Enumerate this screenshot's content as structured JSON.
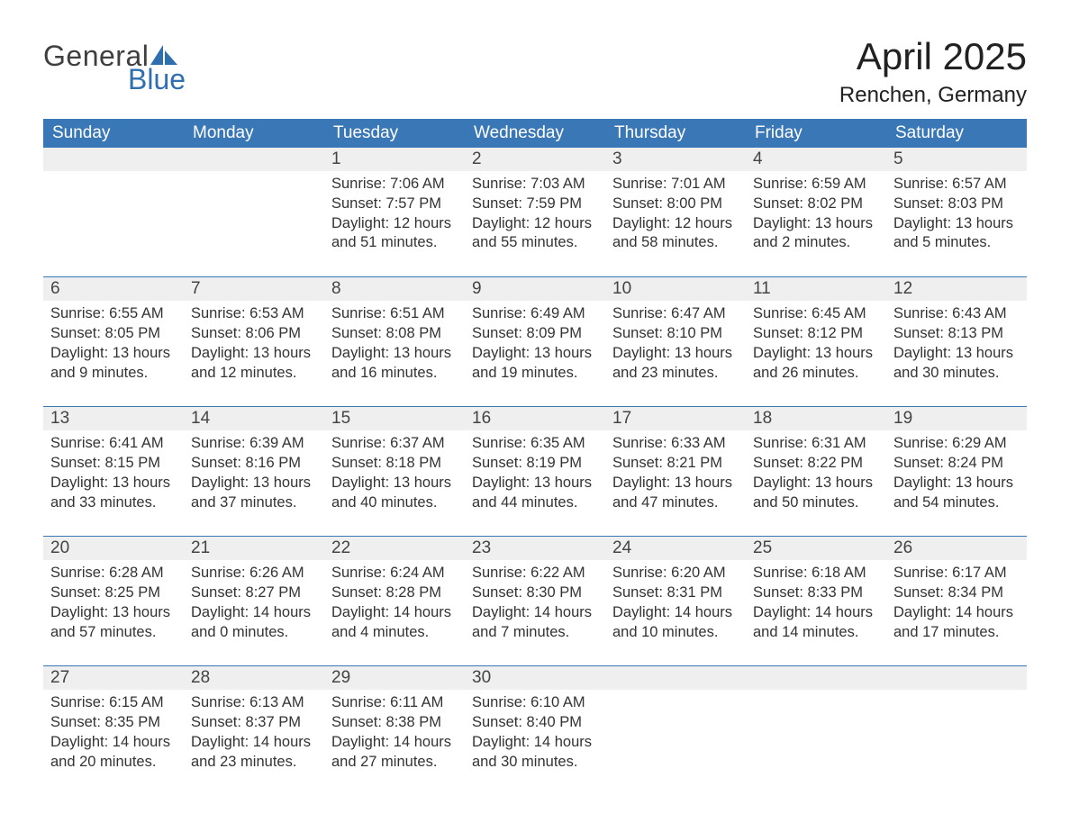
{
  "logo": {
    "word1": "General",
    "word2": "Blue",
    "text_color": "#3f3f3f",
    "accent_color": "#2f6fb0"
  },
  "title": "April 2025",
  "location": "Renchen, Germany",
  "colors": {
    "header_bg": "#3a77b6",
    "header_text": "#ffffff",
    "daynum_bg": "#efefef",
    "row_border": "#3a77b6",
    "body_text": "#333333",
    "page_bg": "#ffffff"
  },
  "typography": {
    "title_fontsize": 42,
    "location_fontsize": 24,
    "dow_fontsize": 19,
    "daynum_fontsize": 19,
    "cell_fontsize": 16.5
  },
  "day_names": [
    "Sunday",
    "Monday",
    "Tuesday",
    "Wednesday",
    "Thursday",
    "Friday",
    "Saturday"
  ],
  "weeks": [
    [
      {
        "n": "",
        "lines": [
          "",
          "",
          "",
          ""
        ]
      },
      {
        "n": "",
        "lines": [
          "",
          "",
          "",
          ""
        ]
      },
      {
        "n": "1",
        "lines": [
          "Sunrise: 7:06 AM",
          "Sunset: 7:57 PM",
          "Daylight: 12 hours",
          "and 51 minutes."
        ]
      },
      {
        "n": "2",
        "lines": [
          "Sunrise: 7:03 AM",
          "Sunset: 7:59 PM",
          "Daylight: 12 hours",
          "and 55 minutes."
        ]
      },
      {
        "n": "3",
        "lines": [
          "Sunrise: 7:01 AM",
          "Sunset: 8:00 PM",
          "Daylight: 12 hours",
          "and 58 minutes."
        ]
      },
      {
        "n": "4",
        "lines": [
          "Sunrise: 6:59 AM",
          "Sunset: 8:02 PM",
          "Daylight: 13 hours",
          "and 2 minutes."
        ]
      },
      {
        "n": "5",
        "lines": [
          "Sunrise: 6:57 AM",
          "Sunset: 8:03 PM",
          "Daylight: 13 hours",
          "and 5 minutes."
        ]
      }
    ],
    [
      {
        "n": "6",
        "lines": [
          "Sunrise: 6:55 AM",
          "Sunset: 8:05 PM",
          "Daylight: 13 hours",
          "and 9 minutes."
        ]
      },
      {
        "n": "7",
        "lines": [
          "Sunrise: 6:53 AM",
          "Sunset: 8:06 PM",
          "Daylight: 13 hours",
          "and 12 minutes."
        ]
      },
      {
        "n": "8",
        "lines": [
          "Sunrise: 6:51 AM",
          "Sunset: 8:08 PM",
          "Daylight: 13 hours",
          "and 16 minutes."
        ]
      },
      {
        "n": "9",
        "lines": [
          "Sunrise: 6:49 AM",
          "Sunset: 8:09 PM",
          "Daylight: 13 hours",
          "and 19 minutes."
        ]
      },
      {
        "n": "10",
        "lines": [
          "Sunrise: 6:47 AM",
          "Sunset: 8:10 PM",
          "Daylight: 13 hours",
          "and 23 minutes."
        ]
      },
      {
        "n": "11",
        "lines": [
          "Sunrise: 6:45 AM",
          "Sunset: 8:12 PM",
          "Daylight: 13 hours",
          "and 26 minutes."
        ]
      },
      {
        "n": "12",
        "lines": [
          "Sunrise: 6:43 AM",
          "Sunset: 8:13 PM",
          "Daylight: 13 hours",
          "and 30 minutes."
        ]
      }
    ],
    [
      {
        "n": "13",
        "lines": [
          "Sunrise: 6:41 AM",
          "Sunset: 8:15 PM",
          "Daylight: 13 hours",
          "and 33 minutes."
        ]
      },
      {
        "n": "14",
        "lines": [
          "Sunrise: 6:39 AM",
          "Sunset: 8:16 PM",
          "Daylight: 13 hours",
          "and 37 minutes."
        ]
      },
      {
        "n": "15",
        "lines": [
          "Sunrise: 6:37 AM",
          "Sunset: 8:18 PM",
          "Daylight: 13 hours",
          "and 40 minutes."
        ]
      },
      {
        "n": "16",
        "lines": [
          "Sunrise: 6:35 AM",
          "Sunset: 8:19 PM",
          "Daylight: 13 hours",
          "and 44 minutes."
        ]
      },
      {
        "n": "17",
        "lines": [
          "Sunrise: 6:33 AM",
          "Sunset: 8:21 PM",
          "Daylight: 13 hours",
          "and 47 minutes."
        ]
      },
      {
        "n": "18",
        "lines": [
          "Sunrise: 6:31 AM",
          "Sunset: 8:22 PM",
          "Daylight: 13 hours",
          "and 50 minutes."
        ]
      },
      {
        "n": "19",
        "lines": [
          "Sunrise: 6:29 AM",
          "Sunset: 8:24 PM",
          "Daylight: 13 hours",
          "and 54 minutes."
        ]
      }
    ],
    [
      {
        "n": "20",
        "lines": [
          "Sunrise: 6:28 AM",
          "Sunset: 8:25 PM",
          "Daylight: 13 hours",
          "and 57 minutes."
        ]
      },
      {
        "n": "21",
        "lines": [
          "Sunrise: 6:26 AM",
          "Sunset: 8:27 PM",
          "Daylight: 14 hours",
          "and 0 minutes."
        ]
      },
      {
        "n": "22",
        "lines": [
          "Sunrise: 6:24 AM",
          "Sunset: 8:28 PM",
          "Daylight: 14 hours",
          "and 4 minutes."
        ]
      },
      {
        "n": "23",
        "lines": [
          "Sunrise: 6:22 AM",
          "Sunset: 8:30 PM",
          "Daylight: 14 hours",
          "and 7 minutes."
        ]
      },
      {
        "n": "24",
        "lines": [
          "Sunrise: 6:20 AM",
          "Sunset: 8:31 PM",
          "Daylight: 14 hours",
          "and 10 minutes."
        ]
      },
      {
        "n": "25",
        "lines": [
          "Sunrise: 6:18 AM",
          "Sunset: 8:33 PM",
          "Daylight: 14 hours",
          "and 14 minutes."
        ]
      },
      {
        "n": "26",
        "lines": [
          "Sunrise: 6:17 AM",
          "Sunset: 8:34 PM",
          "Daylight: 14 hours",
          "and 17 minutes."
        ]
      }
    ],
    [
      {
        "n": "27",
        "lines": [
          "Sunrise: 6:15 AM",
          "Sunset: 8:35 PM",
          "Daylight: 14 hours",
          "and 20 minutes."
        ]
      },
      {
        "n": "28",
        "lines": [
          "Sunrise: 6:13 AM",
          "Sunset: 8:37 PM",
          "Daylight: 14 hours",
          "and 23 minutes."
        ]
      },
      {
        "n": "29",
        "lines": [
          "Sunrise: 6:11 AM",
          "Sunset: 8:38 PM",
          "Daylight: 14 hours",
          "and 27 minutes."
        ]
      },
      {
        "n": "30",
        "lines": [
          "Sunrise: 6:10 AM",
          "Sunset: 8:40 PM",
          "Daylight: 14 hours",
          "and 30 minutes."
        ]
      },
      {
        "n": "",
        "lines": [
          "",
          "",
          "",
          ""
        ]
      },
      {
        "n": "",
        "lines": [
          "",
          "",
          "",
          ""
        ]
      },
      {
        "n": "",
        "lines": [
          "",
          "",
          "",
          ""
        ]
      }
    ]
  ]
}
